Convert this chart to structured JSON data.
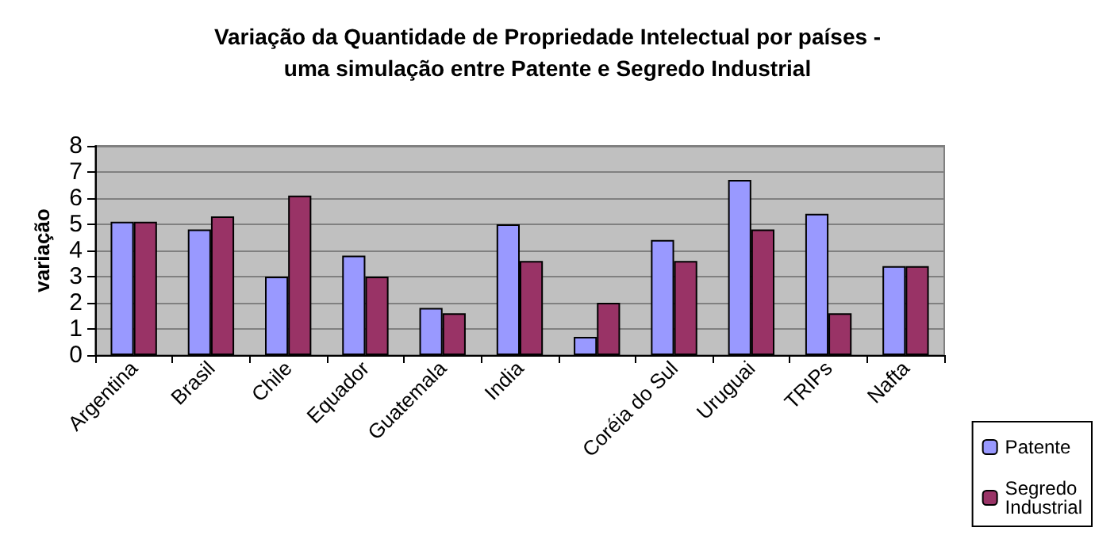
{
  "chart_data": {
    "type": "bar",
    "title": "Variação da Quantidade de Propriedade Intelectual por países -\numa simulação entre Patente e Segredo Industrial",
    "ylabel": "variação",
    "categories": [
      "Argentina",
      "Brasil",
      "Chile",
      "Equador",
      "Guatemala",
      "India",
      null,
      "Coréia do Sul",
      "Uruguai",
      "TRIPs",
      "Nafta"
    ],
    "series": [
      {
        "name": "Patente",
        "color": "#9999ff",
        "values": [
          5.1,
          4.8,
          3.0,
          3.8,
          1.8,
          5.0,
          0.7,
          4.4,
          6.7,
          5.4,
          3.4
        ]
      },
      {
        "name": "Segredo\nIndustrial",
        "color": "#993366",
        "values": [
          5.1,
          5.3,
          6.1,
          3.0,
          1.6,
          3.6,
          2.0,
          3.6,
          4.8,
          1.6,
          3.4
        ]
      }
    ],
    "ylim": [
      0,
      8
    ],
    "yticks": [
      0,
      1,
      2,
      3,
      4,
      5,
      6,
      7,
      8
    ],
    "grid": "y",
    "legend": "bottom right"
  }
}
